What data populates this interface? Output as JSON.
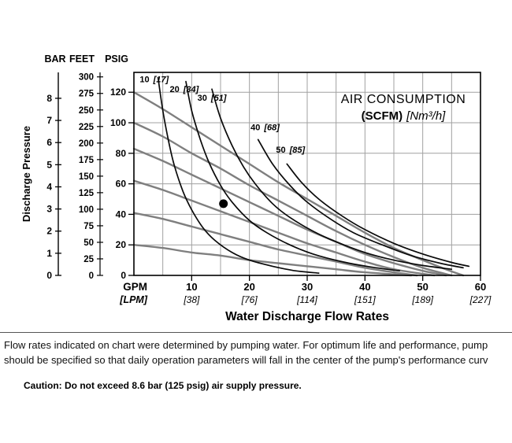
{
  "chart_data": {
    "type": "line",
    "annotation": {
      "title": "AIR CONSUMPTION",
      "unit_bold": "(SCFM)",
      "unit_italic": "[Nm³/h]"
    },
    "ylabel": "Discharge Pressure",
    "xlabel": "Water Discharge Flow Rates",
    "xlim": [
      0,
      60
    ],
    "ylim": [
      0,
      133
    ],
    "grid": {
      "x_step": 5,
      "y_step": 20
    },
    "y_scales": {
      "headers": [
        "BAR",
        "FEET",
        "PSIG"
      ],
      "bar_ticks": [
        0,
        1,
        2,
        3,
        4,
        5,
        6,
        7,
        8
      ],
      "feet_ticks": [
        0,
        25,
        50,
        75,
        100,
        125,
        150,
        175,
        200,
        225,
        250,
        275,
        300
      ],
      "psig_ticks": [
        0,
        20,
        40,
        60,
        80,
        100,
        120
      ]
    },
    "x_scale": {
      "primary_label": "GPM",
      "secondary_label": "[LPM]",
      "ticks": [
        {
          "gpm": "10",
          "lpm": "[38]"
        },
        {
          "gpm": "20",
          "lpm": "[76]"
        },
        {
          "gpm": "30",
          "lpm": "[114]"
        },
        {
          "gpm": "40",
          "lpm": "[151]"
        },
        {
          "gpm": "50",
          "lpm": "[189]"
        },
        {
          "gpm": "60",
          "lpm": "[227]"
        }
      ]
    },
    "performance_curves": [
      {
        "name": "water-curve-120psig",
        "points": [
          [
            0,
            120
          ],
          [
            5,
            109
          ],
          [
            10,
            97
          ],
          [
            15,
            85
          ],
          [
            20,
            73
          ],
          [
            25,
            61
          ],
          [
            30,
            50
          ],
          [
            35,
            39
          ],
          [
            40,
            28
          ],
          [
            45,
            18
          ],
          [
            50,
            10
          ],
          [
            54,
            4
          ],
          [
            57,
            0
          ]
        ]
      },
      {
        "name": "water-curve-100psig",
        "points": [
          [
            0,
            100
          ],
          [
            5,
            91
          ],
          [
            10,
            80
          ],
          [
            15,
            70
          ],
          [
            20,
            59
          ],
          [
            25,
            49
          ],
          [
            30,
            39
          ],
          [
            35,
            29
          ],
          [
            40,
            20
          ],
          [
            45,
            12
          ],
          [
            50,
            5
          ],
          [
            55,
            0
          ]
        ]
      },
      {
        "name": "water-curve-83psig",
        "points": [
          [
            0,
            83
          ],
          [
            5,
            75
          ],
          [
            10,
            66
          ],
          [
            15,
            57
          ],
          [
            20,
            48
          ],
          [
            25,
            39
          ],
          [
            30,
            30
          ],
          [
            35,
            22
          ],
          [
            40,
            14
          ],
          [
            45,
            8
          ],
          [
            50,
            3
          ],
          [
            54,
            0
          ]
        ]
      },
      {
        "name": "water-curve-62psig",
        "points": [
          [
            0,
            62
          ],
          [
            5,
            56
          ],
          [
            10,
            49
          ],
          [
            15,
            42
          ],
          [
            20,
            35
          ],
          [
            25,
            28
          ],
          [
            30,
            21
          ],
          [
            35,
            15
          ],
          [
            40,
            9
          ],
          [
            45,
            4
          ],
          [
            52,
            0
          ]
        ]
      },
      {
        "name": "water-curve-41psig",
        "points": [
          [
            0,
            41
          ],
          [
            5,
            37
          ],
          [
            10,
            32
          ],
          [
            15,
            27
          ],
          [
            20,
            22
          ],
          [
            25,
            17
          ],
          [
            30,
            13
          ],
          [
            35,
            9
          ],
          [
            40,
            5
          ],
          [
            45,
            2
          ],
          [
            49,
            0
          ]
        ]
      },
      {
        "name": "water-curve-20psig",
        "points": [
          [
            0,
            20
          ],
          [
            5,
            18
          ],
          [
            10,
            15
          ],
          [
            15,
            13
          ],
          [
            20,
            10
          ],
          [
            25,
            8
          ],
          [
            30,
            6
          ],
          [
            35,
            4
          ],
          [
            40,
            2
          ],
          [
            48,
            0
          ]
        ]
      }
    ],
    "air_consumption_curves": [
      {
        "label_bold": "10",
        "label_italic": "[17]",
        "label_at": [
          1.0,
          126.5
        ],
        "points": [
          [
            4.2,
            129
          ],
          [
            5,
            108
          ],
          [
            6,
            88
          ],
          [
            7,
            72
          ],
          [
            8.5,
            55
          ],
          [
            10,
            43
          ],
          [
            12,
            31
          ],
          [
            14,
            23
          ],
          [
            17,
            15
          ],
          [
            20,
            10
          ],
          [
            24,
            6
          ],
          [
            28,
            3
          ],
          [
            32,
            1.5
          ]
        ]
      },
      {
        "label_bold": "20",
        "label_italic": "[34]",
        "label_at": [
          6.2,
          120
        ],
        "points": [
          [
            9,
            127
          ],
          [
            10,
            108
          ],
          [
            11.5,
            89
          ],
          [
            13,
            74
          ],
          [
            15,
            59
          ],
          [
            17,
            48
          ],
          [
            20,
            36
          ],
          [
            23,
            28
          ],
          [
            27,
            20
          ],
          [
            31,
            14
          ],
          [
            36,
            9
          ],
          [
            41,
            5.5
          ],
          [
            46,
            3
          ]
        ]
      },
      {
        "label_bold": "30",
        "label_italic": "[51]",
        "label_at": [
          11.0,
          114.5
        ],
        "points": [
          [
            13.5,
            122
          ],
          [
            15,
            103
          ],
          [
            17,
            85
          ],
          [
            19,
            71
          ],
          [
            21,
            60
          ],
          [
            24,
            47
          ],
          [
            27,
            38
          ],
          [
            31,
            29
          ],
          [
            35,
            22
          ],
          [
            40,
            15
          ],
          [
            45,
            10
          ],
          [
            50,
            6.5
          ],
          [
            55,
            4
          ]
        ]
      },
      {
        "label_bold": "40",
        "label_italic": "[68]",
        "label_at": [
          20.2,
          95
        ],
        "points": [
          [
            21.5,
            89
          ],
          [
            24,
            73
          ],
          [
            27,
            59
          ],
          [
            30,
            48
          ],
          [
            34,
            37
          ],
          [
            38,
            28
          ],
          [
            43,
            20
          ],
          [
            48,
            13
          ],
          [
            53,
            8
          ],
          [
            57,
            5
          ]
        ]
      },
      {
        "label_bold": "50",
        "label_italic": "[85]",
        "label_at": [
          24.6,
          80.5
        ],
        "points": [
          [
            26.5,
            73
          ],
          [
            29,
            61
          ],
          [
            32,
            50
          ],
          [
            36,
            39
          ],
          [
            40,
            30
          ],
          [
            45,
            21
          ],
          [
            50,
            14
          ],
          [
            55,
            8.5
          ],
          [
            58,
            6
          ]
        ]
      }
    ],
    "operating_point": {
      "gpm": 15.5,
      "psig": 47
    }
  },
  "footer": {
    "note_line1": "Flow rates indicated on chart were determined by pumping water. For optimum life and performance, pump",
    "note_line2": "should be specified so that daily operation parameters will fall in the center of the pump's performance curv",
    "caution": "Caution: Do not exceed 8.6 bar (125 psig) air supply pressure."
  }
}
